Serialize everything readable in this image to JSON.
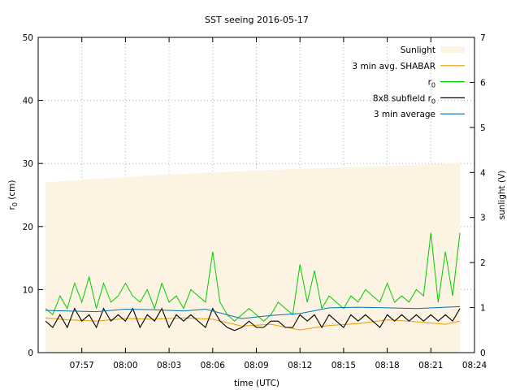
{
  "chart_data": {
    "type": "line",
    "title": "SST seeing 2016-05-17",
    "xlabel": "time (UTC)",
    "ylabel": "r",
    "ylabel_sub": "0",
    "ylabel_unit": " (cm)",
    "y2label": "sunlight (V)",
    "xlim": [
      "07:54:00",
      "08:24:00"
    ],
    "ylim": [
      0,
      50
    ],
    "y2lim": [
      0,
      7
    ],
    "x_ticks": [
      "07:57",
      "08:00",
      "08:03",
      "08:06",
      "08:09",
      "08:12",
      "08:15",
      "08:18",
      "08:21",
      "08:24"
    ],
    "y_ticks": [
      0,
      10,
      20,
      30,
      40,
      50
    ],
    "y2_ticks": [
      0,
      1,
      2,
      3,
      4,
      5,
      6,
      7
    ],
    "grid": true,
    "legend_position": "top-right",
    "sunlight": {
      "name": "Sunlight",
      "color": "#fdf3e3",
      "x": [
        "07:54:30",
        "07:58:00",
        "08:02:00",
        "08:06:00",
        "08:10:00",
        "08:14:00",
        "08:18:00",
        "08:22:00",
        "08:23:00"
      ],
      "values": [
        3.78,
        3.86,
        3.94,
        4.0,
        4.06,
        4.1,
        4.14,
        4.2,
        4.22
      ]
    },
    "series": [
      {
        "name": "3 min avg. SHABAR",
        "color": "#e69f00",
        "x": [
          "07:54:30",
          "07:56:00",
          "07:58:00",
          "08:00:00",
          "08:02:00",
          "08:04:00",
          "08:06:00",
          "08:08:00",
          "08:10:00",
          "08:12:00",
          "08:14:00",
          "08:16:00",
          "08:18:00",
          "08:20:00",
          "08:22:00",
          "08:23:00"
        ],
        "values": [
          5.5,
          5.2,
          5.0,
          5.4,
          5.3,
          5.5,
          5.3,
          4.2,
          4.5,
          3.6,
          4.3,
          4.6,
          5.2,
          4.9,
          4.5,
          5.0
        ]
      },
      {
        "name": "r0",
        "label_main": "r",
        "label_sub": "0",
        "color": "#00cc00",
        "x": [
          "07:54:30",
          "07:55:00",
          "07:55:30",
          "07:56:00",
          "07:56:30",
          "07:57:00",
          "07:57:30",
          "07:58:00",
          "07:58:30",
          "07:59:00",
          "07:59:30",
          "08:00:00",
          "08:00:30",
          "08:01:00",
          "08:01:30",
          "08:02:00",
          "08:02:30",
          "08:03:00",
          "08:03:30",
          "08:04:00",
          "08:04:30",
          "08:05:00",
          "08:05:30",
          "08:06:00",
          "08:06:30",
          "08:07:00",
          "08:07:30",
          "08:08:00",
          "08:08:30",
          "08:09:00",
          "08:09:30",
          "08:10:00",
          "08:10:30",
          "08:11:00",
          "08:11:30",
          "08:12:00",
          "08:12:30",
          "08:13:00",
          "08:13:30",
          "08:14:00",
          "08:14:30",
          "08:15:00",
          "08:15:30",
          "08:16:00",
          "08:16:30",
          "08:17:00",
          "08:17:30",
          "08:18:00",
          "08:18:30",
          "08:19:00",
          "08:19:30",
          "08:20:00",
          "08:20:30",
          "08:21:00",
          "08:21:30",
          "08:22:00",
          "08:22:30",
          "08:23:00"
        ],
        "values": [
          7,
          6,
          9,
          7,
          11,
          8,
          12,
          7,
          11,
          8,
          9,
          11,
          9,
          8,
          10,
          7,
          11,
          8,
          9,
          7,
          10,
          9,
          8,
          16,
          8,
          6,
          5,
          6,
          7,
          6,
          5,
          6,
          8,
          7,
          6,
          14,
          8,
          13,
          7,
          9,
          8,
          7,
          9,
          8,
          10,
          9,
          8,
          11,
          8,
          9,
          8,
          10,
          9,
          19,
          8,
          16,
          9,
          19
        ]
      },
      {
        "name": "8x8 subfield r0",
        "label_main": "8x8 subfield r",
        "label_sub": "0",
        "color": "#000000",
        "x": [
          "07:54:30",
          "07:55:00",
          "07:55:30",
          "07:56:00",
          "07:56:30",
          "07:57:00",
          "07:57:30",
          "07:58:00",
          "07:58:30",
          "07:59:00",
          "07:59:30",
          "08:00:00",
          "08:00:30",
          "08:01:00",
          "08:01:30",
          "08:02:00",
          "08:02:30",
          "08:03:00",
          "08:03:30",
          "08:04:00",
          "08:04:30",
          "08:05:00",
          "08:05:30",
          "08:06:00",
          "08:06:30",
          "08:07:00",
          "08:07:30",
          "08:08:00",
          "08:08:30",
          "08:09:00",
          "08:09:30",
          "08:10:00",
          "08:10:30",
          "08:11:00",
          "08:11:30",
          "08:12:00",
          "08:12:30",
          "08:13:00",
          "08:13:30",
          "08:14:00",
          "08:14:30",
          "08:15:00",
          "08:15:30",
          "08:16:00",
          "08:16:30",
          "08:17:00",
          "08:17:30",
          "08:18:00",
          "08:18:30",
          "08:19:00",
          "08:19:30",
          "08:20:00",
          "08:20:30",
          "08:21:00",
          "08:21:30",
          "08:22:00",
          "08:22:30",
          "08:23:00"
        ],
        "values": [
          5,
          4,
          6,
          4,
          7,
          5,
          6,
          4,
          7,
          5,
          6,
          5,
          7,
          4,
          6,
          5,
          7,
          4,
          6,
          5,
          6,
          5,
          4,
          7,
          5,
          4,
          3.5,
          4,
          5,
          4,
          4,
          5,
          5,
          4,
          4,
          6,
          5,
          6,
          4,
          6,
          5,
          4,
          6,
          5,
          6,
          5,
          4,
          6,
          5,
          6,
          5,
          6,
          5,
          6,
          5,
          6,
          5,
          7
        ]
      },
      {
        "name": "3 min average",
        "color": "#0072b2",
        "x": [
          "07:54:30",
          "07:56:00",
          "07:58:00",
          "08:00:00",
          "08:02:00",
          "08:04:00",
          "08:05:30",
          "08:06:30",
          "08:08:00",
          "08:10:00",
          "08:12:00",
          "08:14:00",
          "08:16:00",
          "08:18:00",
          "08:20:00",
          "08:22:00",
          "08:23:00"
        ],
        "values": [
          6.7,
          6.6,
          6.5,
          6.9,
          6.8,
          6.6,
          6.9,
          6.3,
          5.4,
          5.9,
          6.2,
          7.1,
          7.2,
          7.1,
          7.0,
          7.2,
          7.3
        ]
      }
    ]
  }
}
